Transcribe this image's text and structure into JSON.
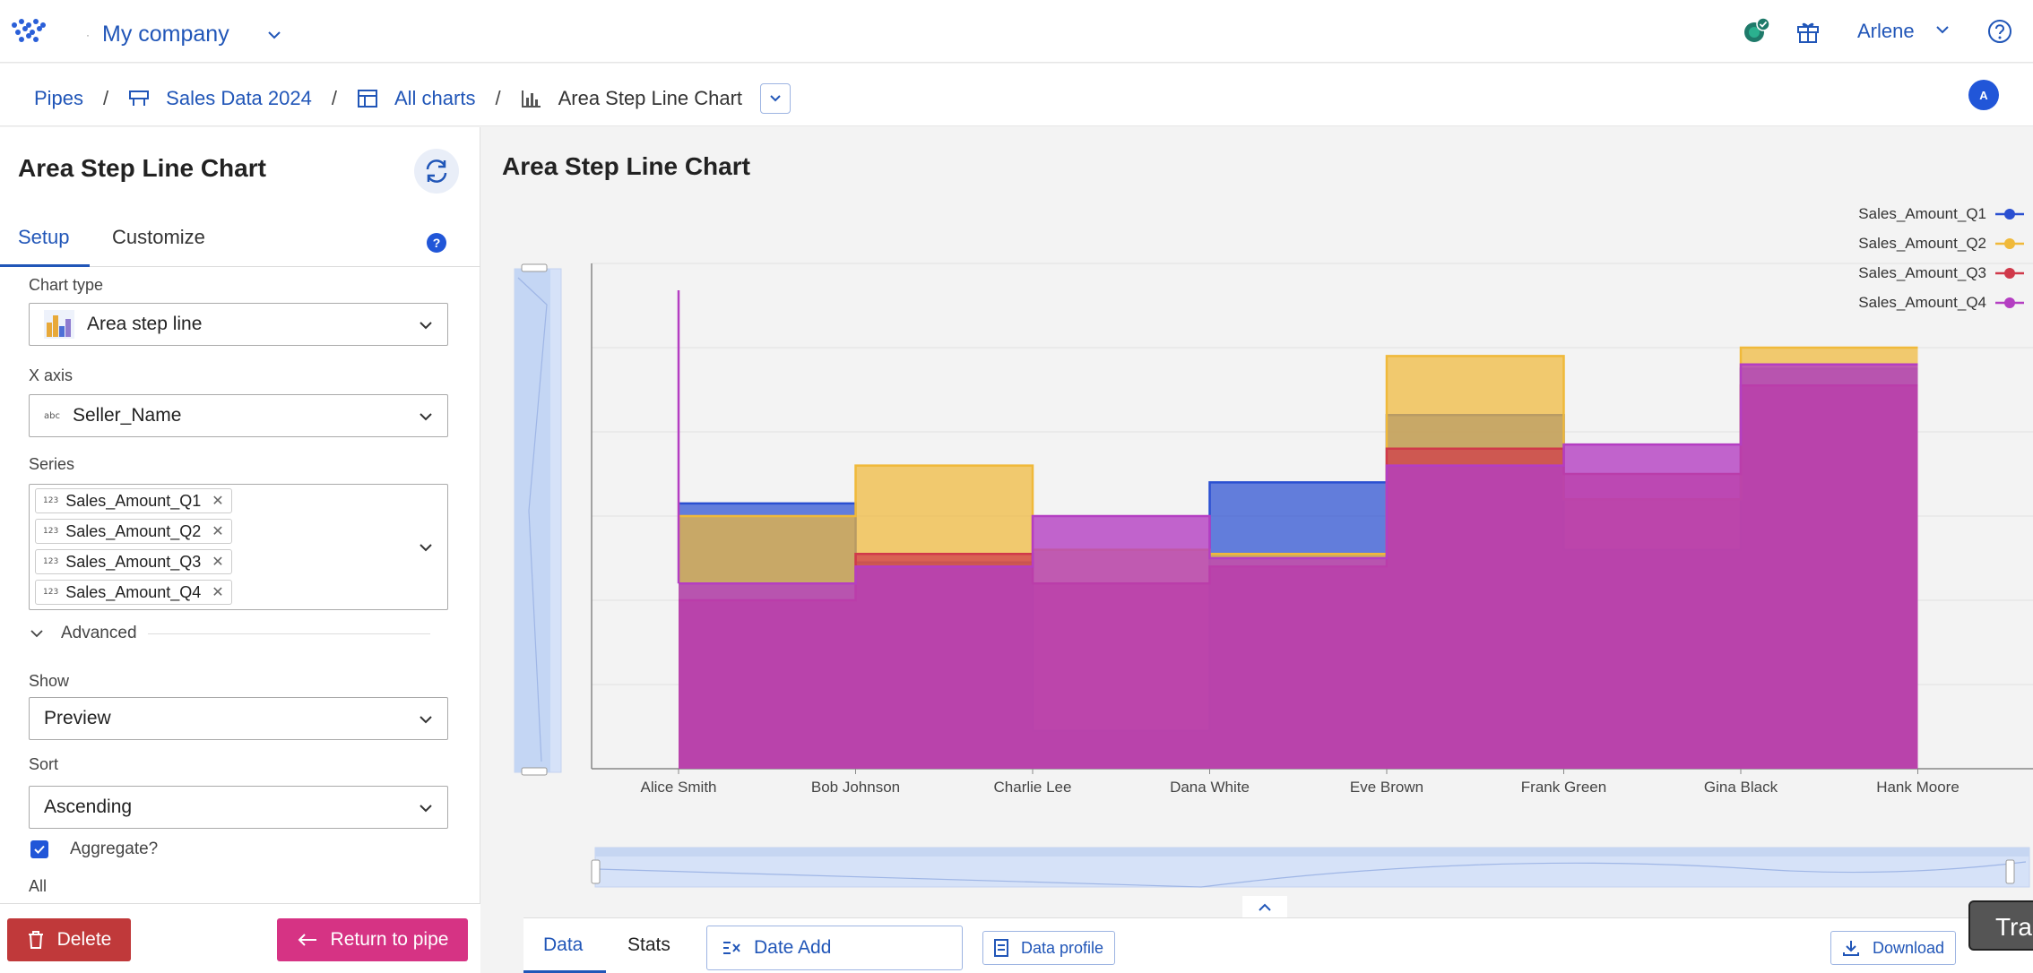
{
  "header": {
    "company": "My company",
    "user": "Arlene"
  },
  "breadcrumb": {
    "pipes": "Pipes",
    "dataset": "Sales Data 2024",
    "all_charts": "All charts",
    "current": "Area Step Line Chart",
    "avatar_initial": "A"
  },
  "left_panel": {
    "title": "Area Step Line Chart",
    "tabs": [
      "Setup",
      "Customize"
    ],
    "help": "?",
    "chart_type_label": "Chart type",
    "chart_type_value": "Area step line",
    "x_axis_label": "X axis",
    "x_axis_type": "abc",
    "x_axis_value": "Seller_Name",
    "series_label": "Series",
    "series_type": "123",
    "series_chips": [
      "Sales_Amount_Q1",
      "Sales_Amount_Q2",
      "Sales_Amount_Q3",
      "Sales_Amount_Q4"
    ],
    "advanced_label": "Advanced",
    "show_label": "Show",
    "show_value": "Preview",
    "sort_label": "Sort",
    "sort_value": "Ascending",
    "aggregate_label": "Aggregate?",
    "all_label": "All",
    "delete_label": "Delete",
    "return_label": "Return to pipe"
  },
  "main": {
    "title": "Area Step Line Chart"
  },
  "bottom_bar": {
    "tab_data": "Data",
    "tab_stats": "Stats",
    "date_add": "Date Add",
    "data_profile": "Data profile",
    "download": "Download",
    "tooltip": "Tras"
  },
  "colors": {
    "accent": "#2156b8",
    "q1": "#2a4fd1",
    "q2": "#f0b93a",
    "q3": "#d0394a",
    "q4": "#b43ec2",
    "delete": "#c0393a",
    "return": "#d63384"
  },
  "chart_data": {
    "type": "area",
    "step": true,
    "title": "Area Step Line Chart",
    "categories": [
      "Alice Smith",
      "Bob Johnson",
      "Charlie Lee",
      "Dana White",
      "Eve Brown",
      "Frank Green",
      "Gina Black",
      "Hank Moore"
    ],
    "ylim": [
      0,
      600
    ],
    "grid": true,
    "legend_position": "top-right",
    "series": [
      {
        "name": "Sales_Amount_Q1",
        "color": "#2a4fd1",
        "values": [
          315,
          245,
          45,
          340,
          420,
          260,
          475,
          475
        ]
      },
      {
        "name": "Sales_Amount_Q2",
        "color": "#f0b93a",
        "values": [
          300,
          360,
          260,
          255,
          490,
          320,
          500,
          500
        ]
      },
      {
        "name": "Sales_Amount_Q3",
        "color": "#d0394a",
        "values": [
          200,
          255,
          220,
          240,
          380,
          350,
          455,
          455
        ]
      },
      {
        "name": "Sales_Amount_Q4",
        "color": "#b43ec2",
        "values": [
          220,
          240,
          300,
          250,
          360,
          385,
          480,
          480
        ]
      }
    ]
  }
}
